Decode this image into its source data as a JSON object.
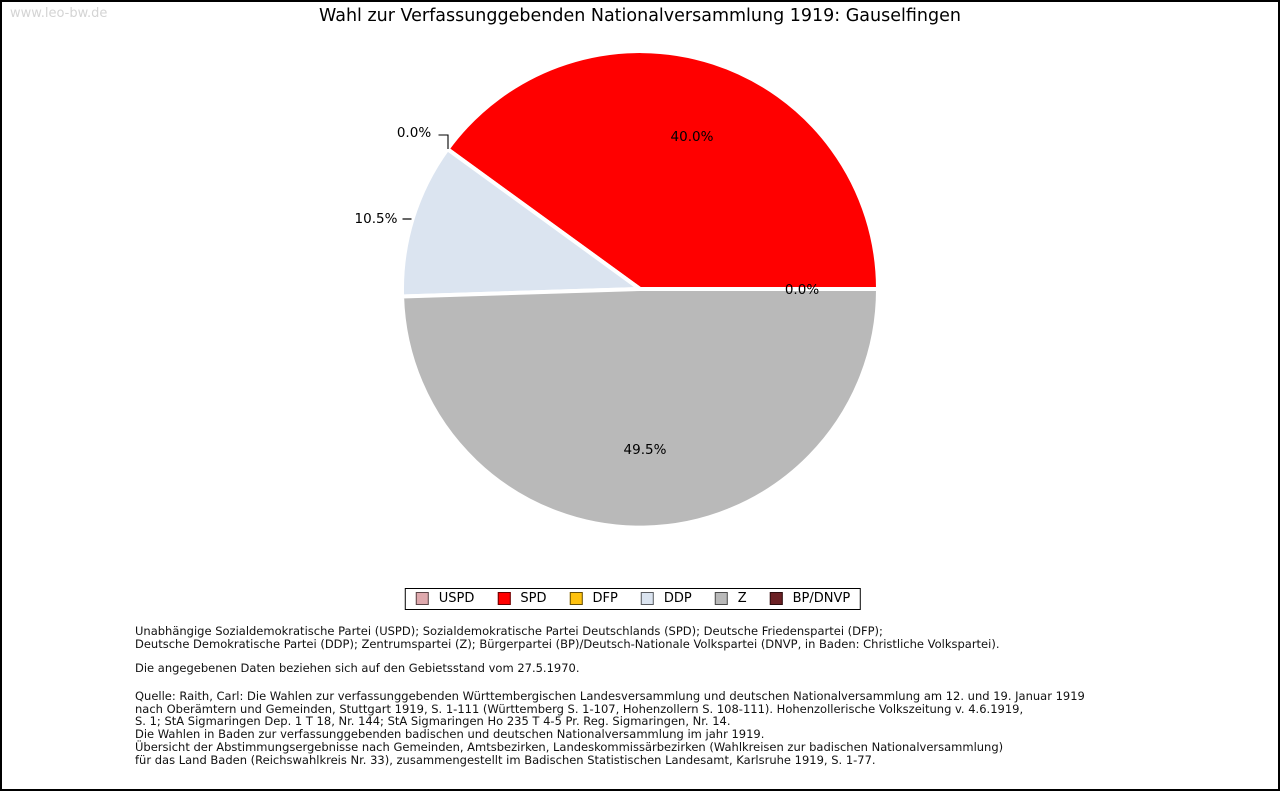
{
  "watermark": "www.leo-bw.de",
  "chart_data": {
    "type": "pie",
    "title": "Wahl zur Verfassunggebenden Nationalversammlung 1919: Gauselfingen",
    "categories": [
      "USPD",
      "SPD",
      "DFP",
      "DDP",
      "Z",
      "BP/DNVP"
    ],
    "values": [
      0.0,
      40.0,
      0.0,
      10.5,
      49.5,
      0.0
    ],
    "colors": [
      "#dfa9ad",
      "#ff0000",
      "#ffc20e",
      "#dbe4f0",
      "#b9b9b9",
      "#6b2024"
    ],
    "pct_labels": [
      "0.0%",
      "40.0%",
      "0.0%",
      "10.5%",
      "49.5%",
      "0.0%"
    ],
    "start_angle_deg": 0,
    "direction": "counterclockwise",
    "legend_position": "bottom",
    "slice_border_color": "#ffffff"
  },
  "footer": {
    "parties_line1": "Unabhängige Sozialdemokratische Partei (USPD); Sozialdemokratische Partei Deutschlands (SPD); Deutsche Friedenspartei (DFP);",
    "parties_line2": "Deutsche Demokratische Partei (DDP); Zentrumspartei (Z); Bürgerpartei (BP)/Deutsch-Nationale Volkspartei (DNVP, in Baden: Christliche Volkspartei).",
    "note": "Die angegebenen Daten beziehen sich auf den Gebietsstand vom 27.5.1970.",
    "source_lines": [
      "Quelle: Raith, Carl: Die Wahlen zur verfassunggebenden Württembergischen Landesversammlung und deutschen Nationalversammlung am 12. und 19. Januar 1919",
      "nach Oberämtern und Gemeinden, Stuttgart 1919, S. 1-111 (Württemberg S. 1-107, Hohenzollern S. 108-111). Hohenzollerische Volkszeitung v. 4.6.1919,",
      "S. 1; StA Sigmaringen Dep. 1 T 18, Nr. 144; StA Sigmaringen Ho 235 T 4-5 Pr. Reg. Sigmaringen, Nr. 14.",
      "Die Wahlen in Baden zur verfassunggebenden badischen und deutschen Nationalversammlung im jahr 1919.",
      "Übersicht der Abstimmungsergebnisse nach Gemeinden, Amtsbezirken, Landeskommissärbezirken (Wahlkreisen zur badischen Nationalversammlung)",
      "für das Land Baden (Reichswahlkreis Nr. 33), zusammengestellt im Badischen Statistischen Landesamt, Karlsruhe 1919, S. 1-77."
    ]
  }
}
